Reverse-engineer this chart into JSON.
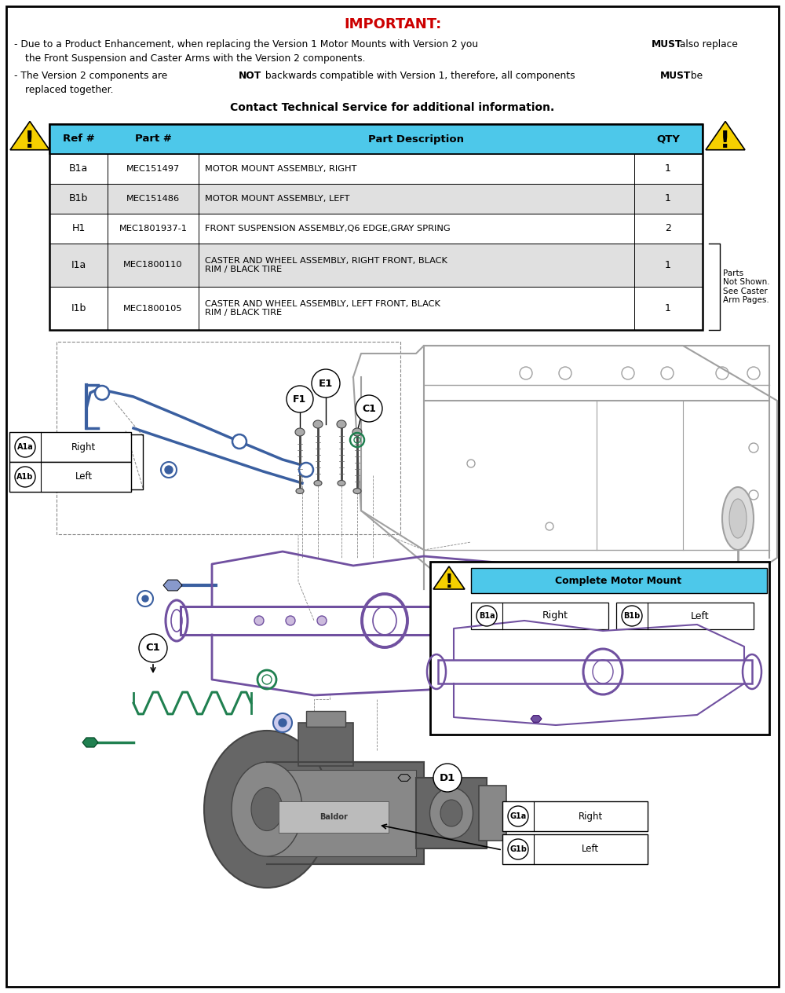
{
  "title_important": "IMPORTANT:",
  "important_color": "#cc0000",
  "contact_line": "Contact Technical Service for additional information.",
  "table_header_bg": "#4dc8ea",
  "table_alt_row_bg": "#e0e0e0",
  "table_white_bg": "#ffffff",
  "table_cols": [
    "Ref #",
    "Part #",
    "Part Description",
    "QTY"
  ],
  "table_rows": [
    [
      "B1a",
      "MEC151497",
      "MOTOR MOUNT ASSEMBLY, RIGHT",
      "1"
    ],
    [
      "B1b",
      "MEC151486",
      "MOTOR MOUNT ASSEMBLY, LEFT",
      "1"
    ],
    [
      "H1",
      "MEC1801937-1",
      "FRONT SUSPENSION ASSEMBLY,Q6 EDGE,GRAY SPRING",
      "2"
    ],
    [
      "I1a",
      "MEC1800110",
      "CASTER AND WHEEL ASSEMBLY, RIGHT FRONT, BLACK\nRIM / BLACK TIRE",
      "1"
    ],
    [
      "I1b",
      "MEC1800105",
      "CASTER AND WHEEL ASSEMBLY, LEFT FRONT, BLACK\nRIM / BLACK TIRE",
      "1"
    ]
  ],
  "parts_note": "Parts\nNot Shown.\nSee Caster\nArm Pages.",
  "bg_color": "#ffffff",
  "warning_color": "#f5d000",
  "blue_part_color": "#3a5fa0",
  "purple_part_color": "#7050a0",
  "green_part_color": "#208050",
  "frame_color": "#a0a0a0",
  "label_complete_motor_mount": "Complete Motor Mount",
  "motor_dark": "#444444",
  "motor_mid": "#666666",
  "motor_light": "#888888"
}
